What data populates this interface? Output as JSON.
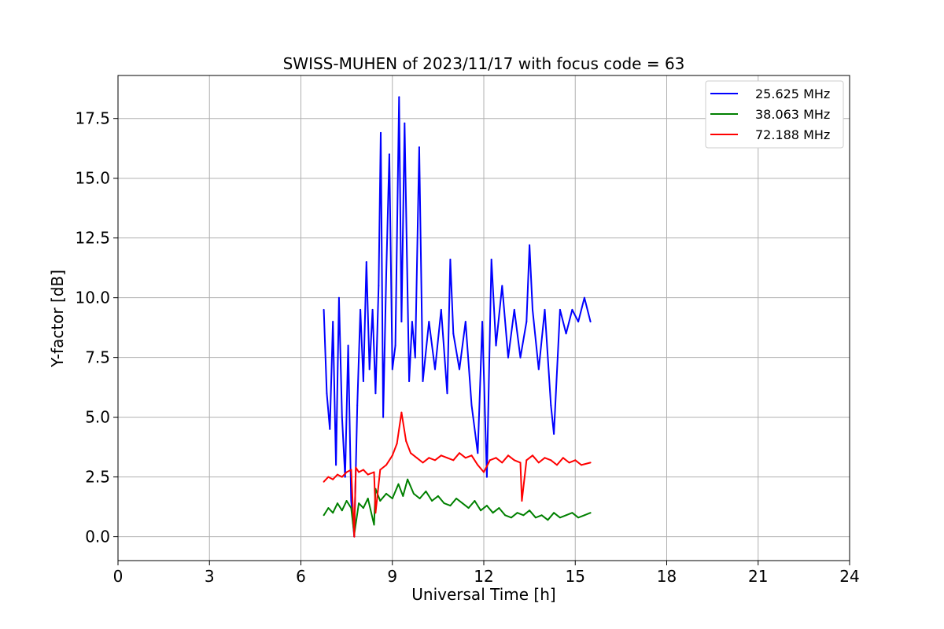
{
  "chart_data": {
    "type": "line",
    "title": "SWISS-MUHEN of 2023/11/17 with focus code = 63",
    "xlabel": "Universal Time [h]",
    "ylabel": "Y-factor [dB]",
    "xlim": [
      0,
      24
    ],
    "ylim": [
      -1.0,
      19.3
    ],
    "xticks": [
      0,
      3,
      6,
      9,
      12,
      15,
      18,
      21,
      24
    ],
    "yticks": [
      0.0,
      2.5,
      5.0,
      7.5,
      10.0,
      12.5,
      15.0,
      17.5
    ],
    "xtick_labels": [
      "0",
      "3",
      "6",
      "9",
      "12",
      "15",
      "18",
      "21",
      "24"
    ],
    "ytick_labels": [
      "0.0",
      "2.5",
      "5.0",
      "7.5",
      "10.0",
      "12.5",
      "15.0",
      "17.5"
    ],
    "grid": true,
    "legend_position": "top-right",
    "series": [
      {
        "name": "25.625 MHz",
        "color": "#0000ff",
        "x": [
          6.75,
          6.85,
          6.95,
          7.05,
          7.15,
          7.25,
          7.35,
          7.45,
          7.55,
          7.65,
          7.75,
          7.85,
          7.95,
          8.05,
          8.15,
          8.25,
          8.35,
          8.45,
          8.55,
          8.62,
          8.7,
          8.8,
          8.9,
          9.0,
          9.1,
          9.22,
          9.3,
          9.4,
          9.55,
          9.65,
          9.75,
          9.88,
          10.0,
          10.2,
          10.4,
          10.6,
          10.8,
          10.9,
          11.0,
          11.2,
          11.4,
          11.6,
          11.8,
          11.95,
          12.1,
          12.25,
          12.4,
          12.6,
          12.8,
          13.0,
          13.2,
          13.4,
          13.5,
          13.6,
          13.8,
          14.0,
          14.2,
          14.3,
          14.5,
          14.7,
          14.9,
          15.1,
          15.3,
          15.5
        ],
        "y": [
          9.5,
          6.0,
          4.5,
          9.0,
          3.0,
          10.0,
          5.0,
          2.5,
          8.0,
          1.5,
          0.0,
          5.5,
          9.5,
          6.5,
          11.5,
          7.0,
          9.5,
          6.0,
          10.5,
          16.9,
          5.0,
          11.0,
          16.0,
          7.0,
          8.0,
          18.4,
          9.0,
          17.3,
          6.5,
          9.0,
          7.5,
          16.3,
          6.5,
          9.0,
          7.0,
          9.5,
          6.0,
          11.6,
          8.5,
          7.0,
          9.0,
          5.5,
          3.5,
          9.0,
          2.5,
          11.6,
          8.0,
          10.5,
          7.5,
          9.5,
          7.5,
          9.0,
          12.2,
          9.5,
          7.0,
          9.5,
          5.5,
          4.3,
          9.5,
          8.5,
          9.5,
          9.0,
          10.0,
          9.0
        ]
      },
      {
        "name": "38.063 MHz",
        "color": "#008000",
        "x": [
          6.75,
          6.9,
          7.05,
          7.2,
          7.35,
          7.5,
          7.65,
          7.75,
          7.9,
          8.05,
          8.2,
          8.4,
          8.45,
          8.6,
          8.8,
          9.0,
          9.2,
          9.35,
          9.5,
          9.7,
          9.9,
          10.1,
          10.3,
          10.5,
          10.7,
          10.9,
          11.1,
          11.3,
          11.5,
          11.7,
          11.9,
          12.1,
          12.3,
          12.5,
          12.7,
          12.9,
          13.1,
          13.3,
          13.5,
          13.7,
          13.9,
          14.1,
          14.3,
          14.5,
          14.7,
          14.9,
          15.1,
          15.3,
          15.5
        ],
        "y": [
          0.9,
          1.2,
          1.0,
          1.4,
          1.1,
          1.5,
          1.2,
          0.1,
          1.4,
          1.2,
          1.6,
          0.5,
          2.0,
          1.5,
          1.8,
          1.6,
          2.2,
          1.7,
          2.4,
          1.8,
          1.6,
          1.9,
          1.5,
          1.7,
          1.4,
          1.3,
          1.6,
          1.4,
          1.2,
          1.5,
          1.1,
          1.3,
          1.0,
          1.2,
          0.9,
          0.8,
          1.0,
          0.9,
          1.1,
          0.8,
          0.9,
          0.7,
          1.0,
          0.8,
          0.9,
          1.0,
          0.8,
          0.9,
          1.0
        ]
      },
      {
        "name": "72.188 MHz",
        "color": "#ff0000",
        "x": [
          6.75,
          6.9,
          7.05,
          7.2,
          7.35,
          7.5,
          7.65,
          7.75,
          7.8,
          7.9,
          8.05,
          8.2,
          8.4,
          8.45,
          8.6,
          8.8,
          9.0,
          9.15,
          9.3,
          9.45,
          9.6,
          9.8,
          10.0,
          10.2,
          10.4,
          10.6,
          10.8,
          11.0,
          11.2,
          11.4,
          11.6,
          11.8,
          12.0,
          12.2,
          12.4,
          12.6,
          12.8,
          13.0,
          13.2,
          13.25,
          13.4,
          13.6,
          13.8,
          14.0,
          14.2,
          14.4,
          14.6,
          14.8,
          15.0,
          15.2,
          15.5
        ],
        "y": [
          2.3,
          2.5,
          2.4,
          2.6,
          2.5,
          2.7,
          2.8,
          0.0,
          2.9,
          2.7,
          2.8,
          2.6,
          2.7,
          1.0,
          2.8,
          3.0,
          3.4,
          3.9,
          5.2,
          4.0,
          3.5,
          3.3,
          3.1,
          3.3,
          3.2,
          3.4,
          3.3,
          3.2,
          3.5,
          3.3,
          3.4,
          3.0,
          2.7,
          3.2,
          3.3,
          3.1,
          3.4,
          3.2,
          3.1,
          1.5,
          3.2,
          3.4,
          3.1,
          3.3,
          3.2,
          3.0,
          3.3,
          3.1,
          3.2,
          3.0,
          3.1
        ]
      }
    ]
  }
}
